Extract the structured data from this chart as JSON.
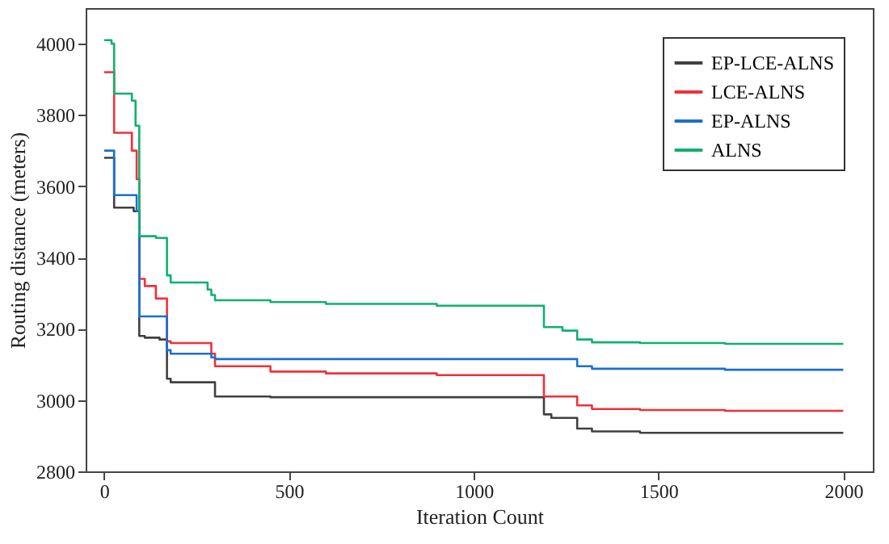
{
  "chart_data": {
    "type": "step",
    "xlabel": "Iteration Count",
    "ylabel": "Routing distance (meters)",
    "xlim": [
      -50,
      2080
    ],
    "ylim": [
      2800,
      4100
    ],
    "xticks": [
      0,
      500,
      1000,
      1500,
      2000
    ],
    "yticks": [
      2800,
      3000,
      3200,
      3400,
      3600,
      3800,
      4000
    ],
    "grid": false,
    "legend": "top right",
    "marker": "none",
    "line_style": "solid",
    "series": [
      {
        "name": "EP-LCE-ALNS",
        "color": "#404040",
        "x": [
          0,
          27,
          80,
          95,
          110,
          150,
          170,
          180,
          300,
          450,
          1190,
          1210,
          1280,
          1320,
          1450,
          2000
        ],
        "values": [
          3680,
          3540,
          3530,
          3180,
          3175,
          3170,
          3060,
          3050,
          3010,
          3008,
          2960,
          2950,
          2920,
          2912,
          2908,
          2908
        ]
      },
      {
        "name": "LCE-ALNS",
        "color": "#f0303c",
        "x": [
          0,
          27,
          75,
          88,
          95,
          110,
          140,
          170,
          180,
          290,
          300,
          450,
          600,
          900,
          1190,
          1280,
          1320,
          1450,
          1680,
          2000
        ],
        "values": [
          3920,
          3750,
          3700,
          3620,
          3340,
          3320,
          3285,
          3165,
          3160,
          3130,
          3095,
          3080,
          3075,
          3070,
          3010,
          2985,
          2975,
          2972,
          2970,
          2970
        ]
      },
      {
        "name": "EP-ALNS",
        "color": "#1a6fd0",
        "x": [
          0,
          27,
          88,
          95,
          170,
          180,
          290,
          300,
          1280,
          1320,
          1680,
          2000
        ],
        "values": [
          3700,
          3575,
          3530,
          3235,
          3140,
          3130,
          3120,
          3115,
          3095,
          3088,
          3085,
          3085
        ]
      },
      {
        "name": "ALNS",
        "color": "#10b070",
        "x": [
          0,
          20,
          27,
          75,
          85,
          95,
          140,
          170,
          180,
          280,
          290,
          300,
          450,
          600,
          900,
          1190,
          1240,
          1280,
          1320,
          1450,
          1680,
          2000
        ],
        "values": [
          4010,
          4000,
          3860,
          3840,
          3770,
          3460,
          3455,
          3350,
          3330,
          3310,
          3295,
          3280,
          3275,
          3270,
          3265,
          3205,
          3195,
          3170,
          3162,
          3160,
          3158,
          3158
        ]
      }
    ]
  }
}
